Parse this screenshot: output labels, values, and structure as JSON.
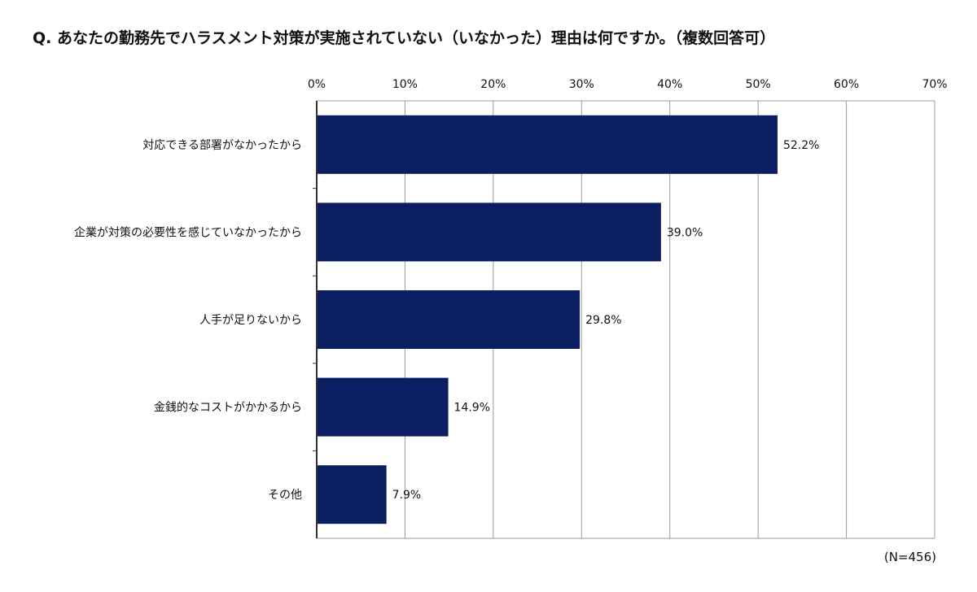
{
  "question": "Q. あなたの勤務先でハラスメント対策が実施されていない（いなかった）理由は何ですか。（複数回答可）",
  "sample_note": "(N=456)",
  "colors": {
    "bar": "#0c1e62",
    "grid": "#9a9a9a",
    "axis": "#333333",
    "frame": "#9a9a9a"
  },
  "chart_data": {
    "type": "bar",
    "orientation": "horizontal",
    "title": "Q. あなたの勤務先でハラスメント対策が実施されていない（いなかった）理由は何ですか。（複数回答可）",
    "categories": [
      "対応できる部署がなかったから",
      "企業が対策の必要性を感じていなかったから",
      "人手が足りないから",
      "金銭的なコストがかかるから",
      "その他"
    ],
    "values": [
      52.2,
      39.0,
      29.8,
      14.9,
      7.9
    ],
    "value_labels": [
      "52.2%",
      "39.0%",
      "29.8%",
      "14.9%",
      "7.9%"
    ],
    "x_ticks": [
      "0%",
      "10%",
      "20%",
      "30%",
      "40%",
      "50%",
      "60%",
      "70%"
    ],
    "xlim": [
      0,
      70
    ],
    "unit": "%",
    "grid": true,
    "axis_position": "top"
  }
}
